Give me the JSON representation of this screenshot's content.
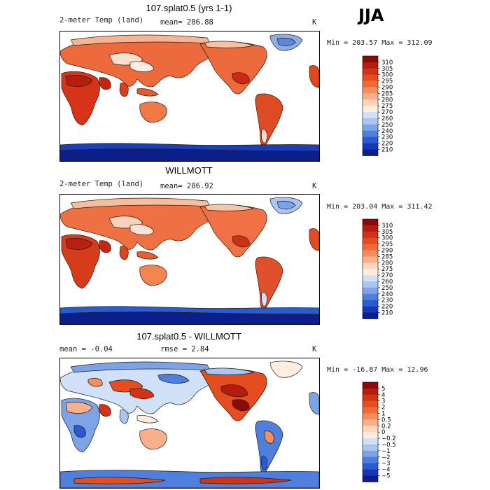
{
  "season": "JJA",
  "panels": [
    {
      "title": "107.splat0.5 (yrs 1-1)",
      "left_label": "2-meter Temp (land)",
      "mid_label": "mean=  286.88",
      "units": "K",
      "minmax": "Min = 203.57 Max = 312.09",
      "colorbar_labels": [
        "310",
        "305",
        "300",
        "295",
        "290",
        "285",
        "280",
        "275",
        "270",
        "260",
        "250",
        "240",
        "230",
        "220",
        "210"
      ],
      "colorbar_colors": [
        "#8c0a0a",
        "#b51b0e",
        "#d23215",
        "#e44d1e",
        "#ef6a35",
        "#f58e5d",
        "#f8b08c",
        "#fcd5bd",
        "#ffeede",
        "#cfe0f7",
        "#a9c6f0",
        "#7ba3e6",
        "#4f7fdc",
        "#2a5bd0",
        "#1438b8",
        "#0a1f8c"
      ]
    },
    {
      "title": "WILLMOTT",
      "left_label": "2-meter Temp (land)",
      "mid_label": "mean=  286.92",
      "units": "K",
      "minmax": "Min = 203.04 Max = 311.42",
      "colorbar_labels": [
        "310",
        "305",
        "300",
        "295",
        "290",
        "285",
        "280",
        "275",
        "270",
        "260",
        "250",
        "240",
        "230",
        "220",
        "210"
      ],
      "colorbar_colors": [
        "#8c0a0a",
        "#b51b0e",
        "#d23215",
        "#e44d1e",
        "#ef6a35",
        "#f58e5d",
        "#f8b08c",
        "#fcd5bd",
        "#ffeede",
        "#cfe0f7",
        "#a9c6f0",
        "#7ba3e6",
        "#4f7fdc",
        "#2a5bd0",
        "#1438b8",
        "#0a1f8c"
      ]
    },
    {
      "title": "107.splat0.5 - WILLMOTT",
      "left_label": "mean =  -0.04",
      "mid_label": "rmse =   2.84",
      "units": "K",
      "minmax": "Min = -16.87 Max =  12.96",
      "colorbar_labels": [
        "5",
        "4",
        "3",
        "2",
        "1",
        "0.5",
        "0.2",
        "0",
        "−0.2",
        "−0.5",
        "−1",
        "−2",
        "−3",
        "−4",
        "−5"
      ],
      "colorbar_colors": [
        "#8c0a0a",
        "#b51b0e",
        "#d23215",
        "#e44d1e",
        "#ef6a35",
        "#f58e5d",
        "#f8b08c",
        "#fcd5bd",
        "#ffeede",
        "#cfe0f7",
        "#a9c6f0",
        "#7ba3e6",
        "#4f7fdc",
        "#2a5bd0",
        "#1438b8",
        "#0a1f8c"
      ]
    }
  ]
}
